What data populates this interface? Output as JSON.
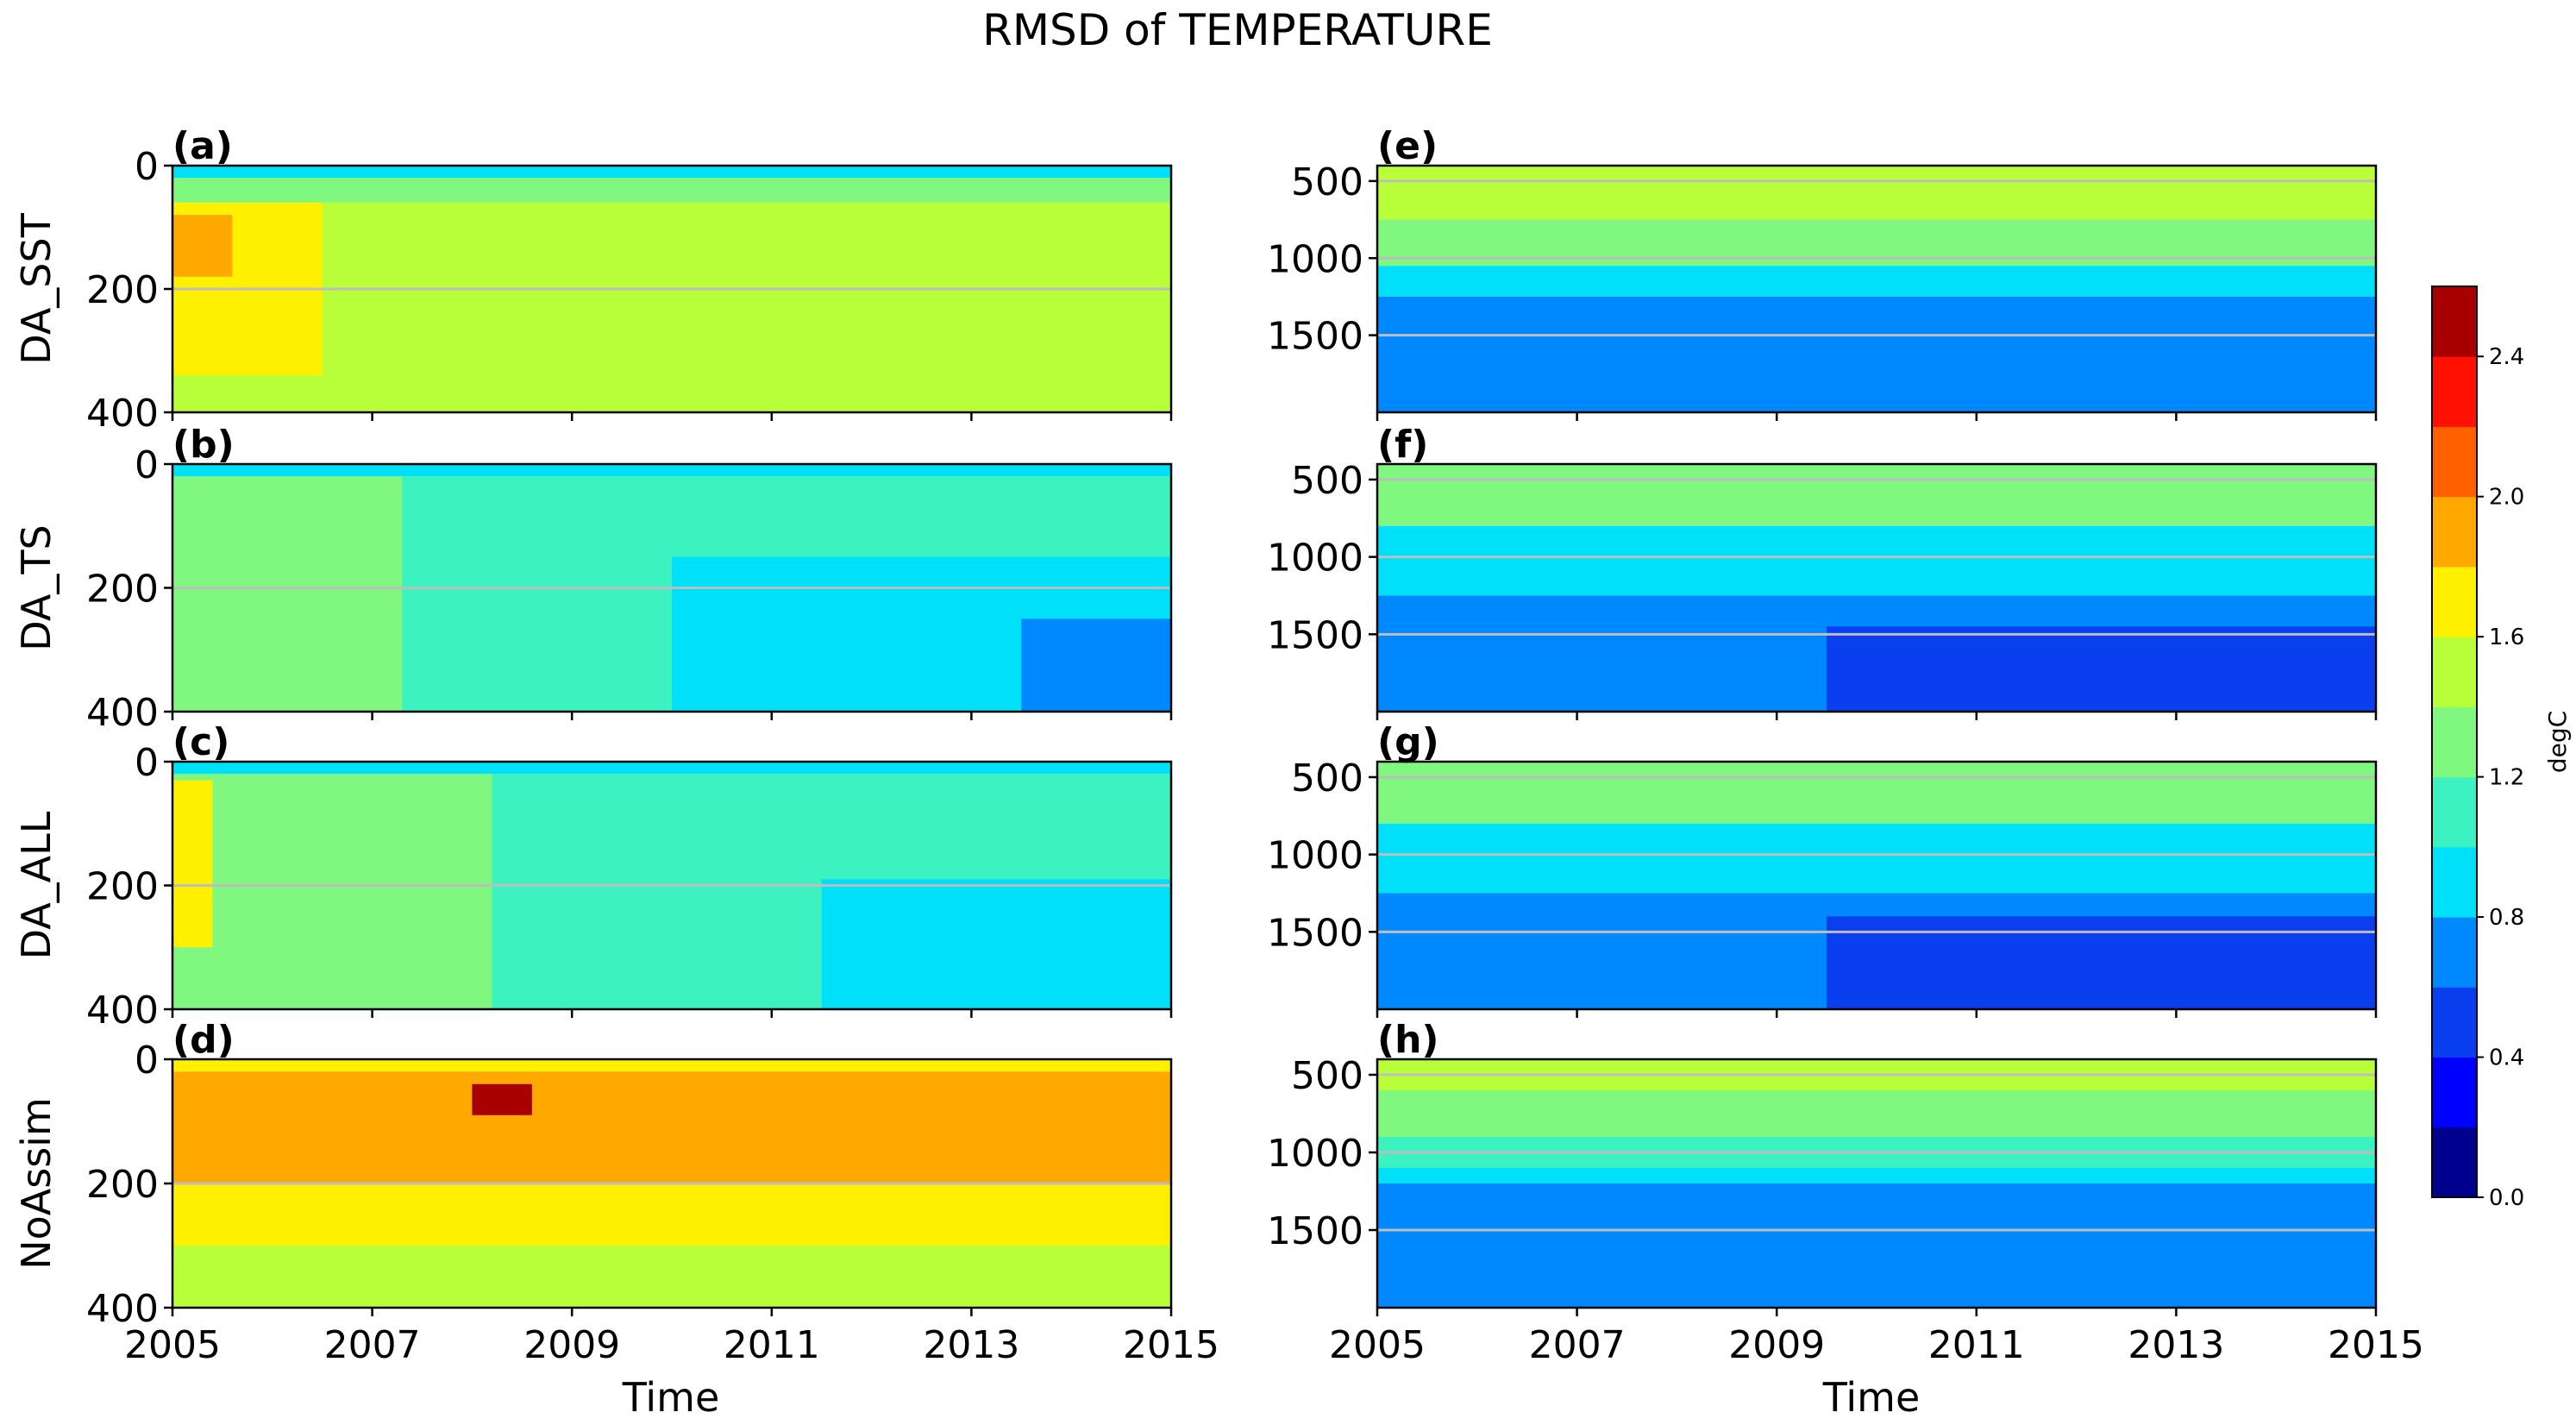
{
  "figure": {
    "title": "RMSD of TEMPERATURE",
    "xlabel": "Time"
  },
  "colors": {
    "levels": [
      0.0,
      0.2,
      0.4,
      0.6,
      0.8,
      1.0,
      1.2,
      1.4,
      1.6,
      1.8,
      2.0,
      2.2,
      2.4,
      2.6
    ],
    "bins": [
      "#00008f",
      "#0000ff",
      "#0a3ff0",
      "#0088ff",
      "#00e0f8",
      "#3cf2c0",
      "#80f880",
      "#b8ff3a",
      "#fff000",
      "#ffa800",
      "#ff6000",
      "#ff1000",
      "#a80000"
    ],
    "grid": "#bdbdbd"
  },
  "colorbar": {
    "label": "degC",
    "ticks": [
      "0.0",
      "0.4",
      "0.8",
      "1.2",
      "1.6",
      "2.0",
      "2.4"
    ]
  },
  "chart_data": [
    {
      "panel": "(a)",
      "type": "heatmap",
      "ylabel": "DA_SST",
      "x": [
        2005,
        2015
      ],
      "ylim": [
        400,
        0
      ],
      "yticks": [
        "0",
        "200",
        "400"
      ],
      "xticks": [
        "2005",
        "2007",
        "2009",
        "2011",
        "2013",
        "2015"
      ],
      "description_bands": [
        {
          "depth_top": 0,
          "depth_bottom": 20,
          "value": 0.9
        },
        {
          "depth_top": 20,
          "depth_bottom": 60,
          "value": 1.3
        },
        {
          "depth_top": 60,
          "depth_bottom": 400,
          "value": 1.5
        },
        {
          "x": [
            2005,
            2006.5
          ],
          "depth_top": 60,
          "depth_bottom": 340,
          "value": 1.7
        },
        {
          "x": [
            2005,
            2005.6
          ],
          "depth_top": 80,
          "depth_bottom": 180,
          "value": 1.9
        }
      ]
    },
    {
      "panel": "(b)",
      "type": "heatmap",
      "ylabel": "DA_TS",
      "x": [
        2005,
        2015
      ],
      "ylim": [
        400,
        0
      ],
      "yticks": [
        "0",
        "200",
        "400"
      ],
      "xticks": [
        "2005",
        "2007",
        "2009",
        "2011",
        "2013",
        "2015"
      ],
      "description_bands": [
        {
          "depth_top": 0,
          "depth_bottom": 20,
          "value": 0.9
        },
        {
          "depth_top": 20,
          "depth_bottom": 400,
          "value": 1.1
        },
        {
          "x": [
            2005,
            2007.3
          ],
          "depth_top": 20,
          "depth_bottom": 400,
          "value": 1.3
        },
        {
          "x": [
            2010,
            2015
          ],
          "depth_top": 150,
          "depth_bottom": 400,
          "value": 0.9
        },
        {
          "x": [
            2013.5,
            2015
          ],
          "depth_top": 250,
          "depth_bottom": 400,
          "value": 0.7
        }
      ]
    },
    {
      "panel": "(c)",
      "type": "heatmap",
      "ylabel": "DA_ALL",
      "x": [
        2005,
        2015
      ],
      "ylim": [
        400,
        0
      ],
      "yticks": [
        "0",
        "200",
        "400"
      ],
      "xticks": [
        "2005",
        "2007",
        "2009",
        "2011",
        "2013",
        "2015"
      ],
      "description_bands": [
        {
          "depth_top": 0,
          "depth_bottom": 20,
          "value": 0.9
        },
        {
          "depth_top": 20,
          "depth_bottom": 400,
          "value": 1.1
        },
        {
          "x": [
            2005,
            2008.2
          ],
          "depth_top": 20,
          "depth_bottom": 400,
          "value": 1.3
        },
        {
          "x": [
            2011.5,
            2015
          ],
          "depth_top": 190,
          "depth_bottom": 400,
          "value": 0.9
        },
        {
          "x": [
            2005,
            2005.4
          ],
          "depth_top": 30,
          "depth_bottom": 300,
          "value": 1.7
        }
      ]
    },
    {
      "panel": "(d)",
      "type": "heatmap",
      "ylabel": "NoAssim",
      "x": [
        2005,
        2015
      ],
      "ylim": [
        400,
        0
      ],
      "yticks": [
        "0",
        "200",
        "400"
      ],
      "xticks": [
        "2005",
        "2007",
        "2009",
        "2011",
        "2013",
        "2015"
      ],
      "description_bands": [
        {
          "depth_top": 0,
          "depth_bottom": 20,
          "value": 1.7
        },
        {
          "depth_top": 20,
          "depth_bottom": 200,
          "value": 1.9
        },
        {
          "depth_top": 200,
          "depth_bottom": 300,
          "value": 1.7
        },
        {
          "depth_top": 300,
          "depth_bottom": 400,
          "value": 1.5
        },
        {
          "x": [
            2008,
            2008.6
          ],
          "depth_top": 40,
          "depth_bottom": 90,
          "value": 2.5
        }
      ]
    },
    {
      "panel": "(e)",
      "type": "heatmap",
      "ylabel": "",
      "x": [
        2005,
        2015
      ],
      "ylim": [
        2000,
        400
      ],
      "yticks": [
        "500",
        "1000",
        "1500"
      ],
      "xticks": [
        "2005",
        "2007",
        "2009",
        "2011",
        "2013",
        "2015"
      ],
      "description_bands": [
        {
          "depth_top": 400,
          "depth_bottom": 750,
          "value": 1.5
        },
        {
          "depth_top": 750,
          "depth_bottom": 1050,
          "value": 1.3
        },
        {
          "depth_top": 1050,
          "depth_bottom": 1250,
          "value": 0.9
        },
        {
          "depth_top": 1250,
          "depth_bottom": 2000,
          "value": 0.7
        }
      ]
    },
    {
      "panel": "(f)",
      "type": "heatmap",
      "ylabel": "",
      "x": [
        2005,
        2015
      ],
      "ylim": [
        2000,
        400
      ],
      "yticks": [
        "500",
        "1000",
        "1500"
      ],
      "xticks": [
        "2005",
        "2007",
        "2009",
        "2011",
        "2013",
        "2015"
      ],
      "description_bands": [
        {
          "depth_top": 400,
          "depth_bottom": 800,
          "value": 1.3
        },
        {
          "depth_top": 800,
          "depth_bottom": 1250,
          "value": 0.9
        },
        {
          "depth_top": 1250,
          "depth_bottom": 2000,
          "value": 0.7
        },
        {
          "x": [
            2009.5,
            2015
          ],
          "depth_top": 1450,
          "depth_bottom": 2000,
          "value": 0.5
        }
      ]
    },
    {
      "panel": "(g)",
      "type": "heatmap",
      "ylabel": "",
      "x": [
        2005,
        2015
      ],
      "ylim": [
        2000,
        400
      ],
      "yticks": [
        "500",
        "1000",
        "1500"
      ],
      "xticks": [
        "2005",
        "2007",
        "2009",
        "2011",
        "2013",
        "2015"
      ],
      "description_bands": [
        {
          "depth_top": 400,
          "depth_bottom": 800,
          "value": 1.3
        },
        {
          "depth_top": 800,
          "depth_bottom": 1250,
          "value": 0.9
        },
        {
          "depth_top": 1250,
          "depth_bottom": 2000,
          "value": 0.7
        },
        {
          "x": [
            2009.5,
            2015
          ],
          "depth_top": 1400,
          "depth_bottom": 2000,
          "value": 0.5
        }
      ]
    },
    {
      "panel": "(h)",
      "type": "heatmap",
      "ylabel": "",
      "x": [
        2005,
        2015
      ],
      "ylim": [
        2000,
        400
      ],
      "yticks": [
        "500",
        "1000",
        "1500"
      ],
      "xticks": [
        "2005",
        "2007",
        "2009",
        "2011",
        "2013",
        "2015"
      ],
      "description_bands": [
        {
          "depth_top": 400,
          "depth_bottom": 600,
          "value": 1.5
        },
        {
          "depth_top": 600,
          "depth_bottom": 900,
          "value": 1.3
        },
        {
          "depth_top": 900,
          "depth_bottom": 1100,
          "value": 1.1
        },
        {
          "depth_top": 1100,
          "depth_bottom": 1200,
          "value": 0.9
        },
        {
          "depth_top": 1200,
          "depth_bottom": 2000,
          "value": 0.7
        }
      ]
    }
  ]
}
